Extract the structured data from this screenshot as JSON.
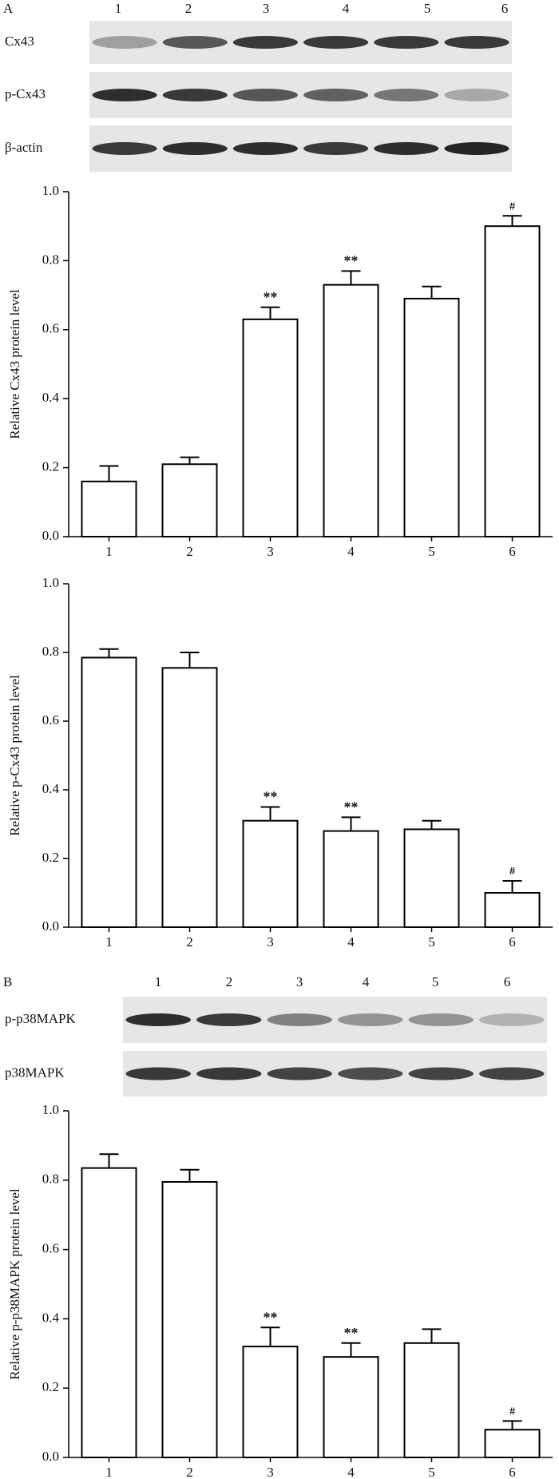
{
  "blots": [
    {
      "panel": "A",
      "lanes": [
        "1",
        "2",
        "3",
        "4",
        "5",
        "6"
      ],
      "rows": [
        "Cx43",
        "p-Cx43",
        "β-actin"
      ]
    },
    {
      "panel": "B",
      "lanes": [
        "1",
        "2",
        "3",
        "4",
        "5",
        "6"
      ],
      "rows": [
        "p-p38MAPK",
        "p38MAPK"
      ]
    }
  ],
  "chart_data": [
    {
      "type": "bar",
      "ylabel": "Relative Cx43 protein level",
      "categories": [
        "1",
        "2",
        "3",
        "4",
        "5",
        "6"
      ],
      "values": [
        0.16,
        0.21,
        0.63,
        0.73,
        0.69,
        0.9
      ],
      "errors": [
        0.045,
        0.02,
        0.035,
        0.04,
        0.035,
        0.03
      ],
      "annotations": [
        null,
        null,
        "**",
        "**",
        null,
        "#"
      ],
      "color": "#ffffff",
      "ylim": [
        0,
        1
      ],
      "yticks": [
        {
          "value": 0,
          "label": "0.0"
        },
        0.2,
        0.4,
        0.6,
        0.8,
        {
          "value": 1,
          "label": "1.0"
        }
      ],
      "grid": false
    },
    {
      "type": "bar",
      "ylabel": "Relative p-Cx43 protein level",
      "categories": [
        "1",
        "2",
        "3",
        "4",
        "5",
        "6"
      ],
      "values": [
        0.785,
        0.755,
        0.31,
        0.28,
        0.285,
        0.1
      ],
      "errors": [
        0.025,
        0.045,
        0.04,
        0.04,
        0.025,
        0.035
      ],
      "annotations": [
        null,
        null,
        "**",
        "**",
        null,
        "#"
      ],
      "color": "#ffffff",
      "ylim": [
        0,
        1
      ],
      "yticks": [
        {
          "value": 0,
          "label": "0.0"
        },
        0.2,
        0.4,
        0.6,
        0.8,
        {
          "value": 1,
          "label": "1.0"
        }
      ],
      "grid": false
    },
    {
      "type": "bar",
      "ylabel": "Relative p-p38MAPK protein level",
      "categories": [
        "1",
        "2",
        "3",
        "4",
        "5",
        "6"
      ],
      "values": [
        0.835,
        0.795,
        0.32,
        0.29,
        0.33,
        0.08
      ],
      "errors": [
        0.04,
        0.035,
        0.055,
        0.04,
        0.04,
        0.025
      ],
      "annotations": [
        null,
        null,
        "**",
        "**",
        null,
        "#"
      ],
      "color": "#ffffff",
      "ylim": [
        0,
        1
      ],
      "yticks": [
        {
          "value": 0,
          "label": "0.0"
        },
        0.2,
        0.4,
        0.6,
        0.8,
        {
          "value": 1,
          "label": "1.0"
        }
      ],
      "grid": false
    }
  ]
}
